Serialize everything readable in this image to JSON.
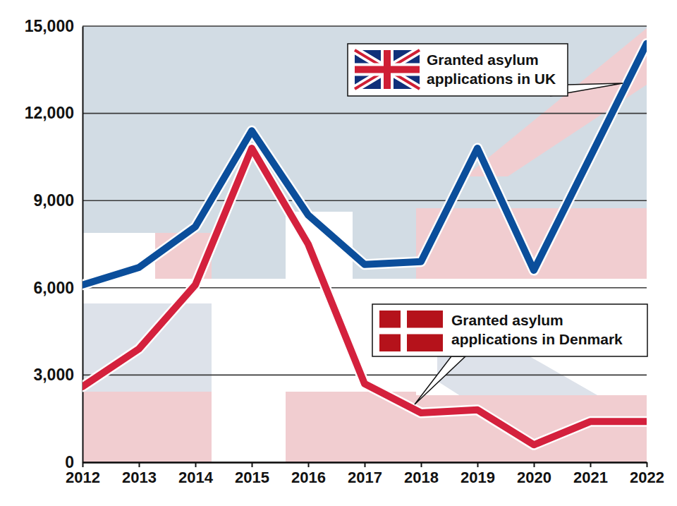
{
  "chart_data": {
    "type": "line",
    "x": [
      2012,
      2013,
      2014,
      2015,
      2016,
      2017,
      2018,
      2019,
      2020,
      2021,
      2022
    ],
    "xlim": [
      2012,
      2022
    ],
    "xticks": [
      2012,
      2013,
      2014,
      2015,
      2016,
      2017,
      2018,
      2019,
      2020,
      2021,
      2022
    ],
    "ylim": [
      0,
      15000
    ],
    "yticks": [
      0,
      {
        "value": 3000,
        "label": "3,000"
      },
      {
        "value": 6000,
        "label": "6,000"
      },
      {
        "value": 9000,
        "label": "9,000"
      },
      {
        "value": 12000,
        "label": "12,000"
      },
      {
        "value": 15000,
        "label": "15,000"
      }
    ],
    "grid": true,
    "series": [
      {
        "name": "Granted asylum applications in UK",
        "color": "#0b4e9b",
        "values": [
          6100,
          6700,
          8100,
          11400,
          8500,
          6800,
          6900,
          10800,
          6600,
          10500,
          14400
        ]
      },
      {
        "name": "Granted asylum applications in Denmark",
        "color": "#d4213d",
        "values": [
          2600,
          3900,
          6100,
          10800,
          7500,
          2700,
          1700,
          1800,
          600,
          1400,
          1400
        ]
      }
    ]
  }
}
